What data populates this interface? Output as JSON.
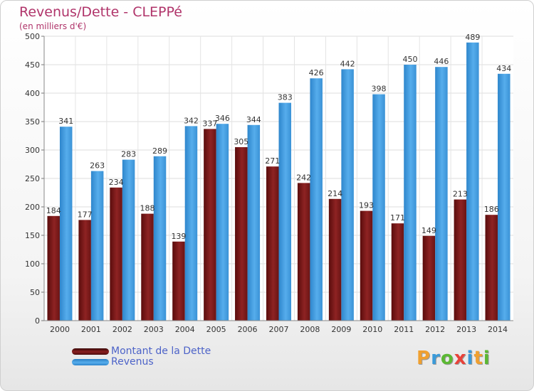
{
  "header": {
    "title": "Revenus/Dette - CLEPPé",
    "subtitle": "(en milliers d'€)"
  },
  "chart_data": {
    "type": "bar",
    "categories": [
      "2000",
      "2001",
      "2002",
      "2003",
      "2004",
      "2005",
      "2006",
      "2007",
      "2008",
      "2009",
      "2010",
      "2011",
      "2012",
      "2013",
      "2014"
    ],
    "series": [
      {
        "name": "Montant de la Dette",
        "color": "#8b2020",
        "values": [
          184,
          177,
          234,
          188,
          139,
          337,
          305,
          271,
          242,
          214,
          193,
          171,
          149,
          213,
          186
        ]
      },
      {
        "name": "Revenus",
        "color": "#3f9be0",
        "values": [
          341,
          263,
          283,
          289,
          342,
          346,
          344,
          383,
          426,
          442,
          398,
          450,
          446,
          489,
          434
        ]
      }
    ],
    "yticks": [
      "0",
      "50",
      "100",
      "150",
      "200",
      "250",
      "300",
      "350",
      "400",
      "450",
      "500"
    ],
    "ylim": [
      0,
      500
    ],
    "grid": true,
    "legend_position": "bottom-left"
  },
  "brand": {
    "logo_letters": [
      "P",
      "r",
      "o",
      "x",
      "i",
      "t",
      "i"
    ],
    "logo_colors": [
      "#f0a030",
      "#3a9ad9",
      "#5bb833",
      "#e8423a",
      "#3a9ad9",
      "#f0a030",
      "#5bb833"
    ]
  },
  "colors": {
    "accent": "#b0346a",
    "legend_text": "#4d63c8"
  }
}
